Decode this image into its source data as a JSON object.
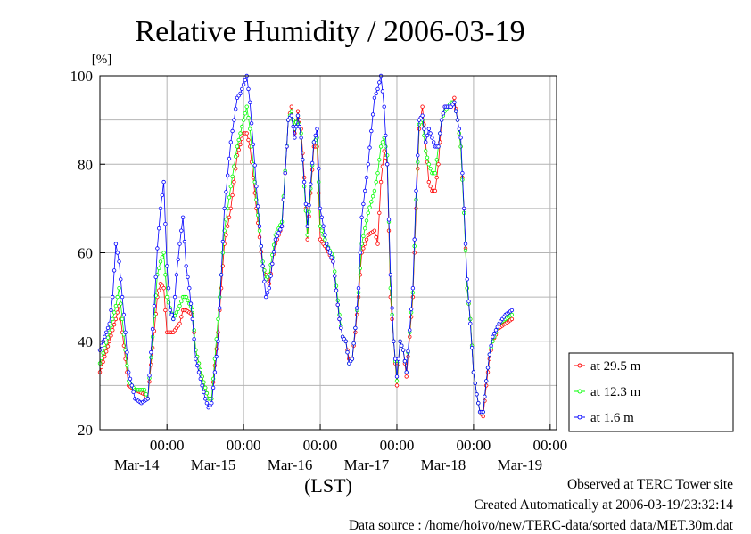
{
  "chart_data": {
    "type": "line",
    "title": "Relative Humidity / 2006-03-19",
    "ylabel": "[%]",
    "xlabel": "(LST)",
    "ylim": [
      20,
      100
    ],
    "yticks": [
      20,
      40,
      60,
      80,
      100
    ],
    "xlim": [
      0,
      143
    ],
    "xticks": [
      {
        "x": 21,
        "time": "00:00",
        "date": "Mar-14"
      },
      {
        "x": 45,
        "time": "00:00",
        "date": "Mar-15"
      },
      {
        "x": 69,
        "time": "00:00",
        "date": "Mar-16"
      },
      {
        "x": 93,
        "time": "00:00",
        "date": "Mar-17"
      },
      {
        "x": 117,
        "time": "00:00",
        "date": "Mar-18"
      },
      {
        "x": 141,
        "time": "00:00",
        "date": "Mar-19"
      }
    ],
    "grid": true,
    "legend_position": "right",
    "series": [
      {
        "name": "at 29.5 m",
        "color": "#ff0000",
        "knots": [
          [
            0,
            33
          ],
          [
            3,
            40
          ],
          [
            5,
            45
          ],
          [
            6,
            48
          ],
          [
            8,
            36
          ],
          [
            9,
            30
          ],
          [
            11,
            29
          ],
          [
            14,
            28
          ],
          [
            15,
            27
          ],
          [
            18,
            50
          ],
          [
            19,
            53
          ],
          [
            20,
            52
          ],
          [
            21,
            42
          ],
          [
            23,
            42
          ],
          [
            25,
            44
          ],
          [
            26,
            47
          ],
          [
            27,
            47
          ],
          [
            29,
            46
          ],
          [
            30,
            38
          ],
          [
            32,
            32
          ],
          [
            34,
            27
          ],
          [
            35,
            27
          ],
          [
            37,
            42
          ],
          [
            39,
            62
          ],
          [
            41,
            70
          ],
          [
            43,
            82
          ],
          [
            45,
            87
          ],
          [
            46,
            87
          ],
          [
            47,
            84
          ],
          [
            49,
            70
          ],
          [
            51,
            57
          ],
          [
            52,
            55
          ],
          [
            53,
            53
          ],
          [
            55,
            62
          ],
          [
            57,
            66
          ],
          [
            59,
            90
          ],
          [
            60,
            93
          ],
          [
            61,
            87
          ],
          [
            62,
            92
          ],
          [
            63,
            88
          ],
          [
            64,
            77
          ],
          [
            65,
            63
          ],
          [
            67,
            84
          ],
          [
            68,
            84
          ],
          [
            69,
            63
          ],
          [
            71,
            61
          ],
          [
            73,
            58
          ],
          [
            75,
            45
          ],
          [
            76,
            41
          ],
          [
            77,
            40
          ],
          [
            78,
            36
          ],
          [
            79,
            36
          ],
          [
            80,
            42
          ],
          [
            81,
            50
          ],
          [
            82,
            60
          ],
          [
            84,
            64
          ],
          [
            86,
            65
          ],
          [
            87,
            62
          ],
          [
            88,
            76
          ],
          [
            89,
            83
          ],
          [
            90,
            80
          ],
          [
            91,
            50
          ],
          [
            92,
            40
          ],
          [
            93,
            30
          ],
          [
            94,
            40
          ],
          [
            95,
            38
          ],
          [
            96,
            32
          ],
          [
            98,
            50
          ],
          [
            99,
            70
          ],
          [
            100,
            88
          ],
          [
            101,
            93
          ],
          [
            102,
            85
          ],
          [
            103,
            76
          ],
          [
            104,
            74
          ],
          [
            105,
            74
          ],
          [
            106,
            80
          ],
          [
            107,
            90
          ],
          [
            108,
            93
          ],
          [
            110,
            93
          ],
          [
            111,
            95
          ],
          [
            112,
            90
          ],
          [
            113,
            84
          ],
          [
            114,
            70
          ],
          [
            115,
            52
          ],
          [
            116,
            45
          ],
          [
            117,
            33
          ],
          [
            118,
            28
          ],
          [
            119,
            24
          ],
          [
            120,
            23
          ],
          [
            121,
            30
          ],
          [
            122,
            36
          ],
          [
            123,
            40
          ],
          [
            125,
            43
          ],
          [
            127,
            44
          ],
          [
            129,
            45
          ]
        ]
      },
      {
        "name": "at 12.3 m",
        "color": "#00ff00",
        "knots": [
          [
            0,
            35
          ],
          [
            3,
            42
          ],
          [
            5,
            48
          ],
          [
            6,
            52
          ],
          [
            8,
            38
          ],
          [
            9,
            31
          ],
          [
            11,
            29
          ],
          [
            14,
            29
          ],
          [
            15,
            27
          ],
          [
            18,
            55
          ],
          [
            19,
            58
          ],
          [
            20,
            60
          ],
          [
            21,
            50
          ],
          [
            23,
            45
          ],
          [
            25,
            48
          ],
          [
            26,
            50
          ],
          [
            27,
            50
          ],
          [
            29,
            47
          ],
          [
            30,
            38
          ],
          [
            32,
            32
          ],
          [
            34,
            27
          ],
          [
            35,
            27
          ],
          [
            37,
            45
          ],
          [
            39,
            65
          ],
          [
            41,
            75
          ],
          [
            43,
            84
          ],
          [
            45,
            90
          ],
          [
            46,
            93
          ],
          [
            47,
            88
          ],
          [
            49,
            72
          ],
          [
            51,
            58
          ],
          [
            52,
            54
          ],
          [
            53,
            55
          ],
          [
            55,
            64
          ],
          [
            57,
            67
          ],
          [
            59,
            90
          ],
          [
            60,
            92
          ],
          [
            61,
            88
          ],
          [
            62,
            91
          ],
          [
            63,
            87
          ],
          [
            64,
            75
          ],
          [
            65,
            64
          ],
          [
            67,
            85
          ],
          [
            68,
            86
          ],
          [
            69,
            66
          ],
          [
            71,
            62
          ],
          [
            73,
            59
          ],
          [
            75,
            46
          ],
          [
            76,
            41
          ],
          [
            77,
            40
          ],
          [
            78,
            35
          ],
          [
            79,
            36
          ],
          [
            80,
            43
          ],
          [
            81,
            51
          ],
          [
            82,
            62
          ],
          [
            84,
            69
          ],
          [
            86,
            74
          ],
          [
            87,
            78
          ],
          [
            88,
            84
          ],
          [
            89,
            86
          ],
          [
            90,
            82
          ],
          [
            91,
            52
          ],
          [
            92,
            40
          ],
          [
            93,
            31
          ],
          [
            94,
            40
          ],
          [
            95,
            38
          ],
          [
            96,
            33
          ],
          [
            98,
            51
          ],
          [
            99,
            72
          ],
          [
            100,
            89
          ],
          [
            101,
            90
          ],
          [
            102,
            83
          ],
          [
            103,
            80
          ],
          [
            104,
            78
          ],
          [
            105,
            78
          ],
          [
            106,
            84
          ],
          [
            107,
            90
          ],
          [
            108,
            92
          ],
          [
            110,
            94
          ],
          [
            111,
            94
          ],
          [
            112,
            90
          ],
          [
            113,
            84
          ],
          [
            114,
            69
          ],
          [
            115,
            52
          ],
          [
            116,
            45
          ],
          [
            117,
            33
          ],
          [
            118,
            28
          ],
          [
            119,
            24
          ],
          [
            120,
            24
          ],
          [
            121,
            31
          ],
          [
            122,
            37
          ],
          [
            123,
            40
          ],
          [
            125,
            44
          ],
          [
            127,
            45
          ],
          [
            129,
            46
          ]
        ]
      },
      {
        "name": "at 1.6 m",
        "color": "#0000ff",
        "knots": [
          [
            0,
            38
          ],
          [
            3,
            44
          ],
          [
            4,
            50
          ],
          [
            5,
            62
          ],
          [
            6,
            58
          ],
          [
            8,
            42
          ],
          [
            9,
            33
          ],
          [
            11,
            27
          ],
          [
            13,
            26
          ],
          [
            15,
            27
          ],
          [
            17,
            48
          ],
          [
            18,
            61
          ],
          [
            19,
            70
          ],
          [
            20,
            76
          ],
          [
            21,
            57
          ],
          [
            22,
            47
          ],
          [
            23,
            45
          ],
          [
            24,
            55
          ],
          [
            25,
            62
          ],
          [
            26,
            68
          ],
          [
            27,
            57
          ],
          [
            28,
            52
          ],
          [
            29,
            45
          ],
          [
            30,
            36
          ],
          [
            32,
            30
          ],
          [
            33,
            27
          ],
          [
            34,
            25
          ],
          [
            35,
            26
          ],
          [
            37,
            40
          ],
          [
            39,
            70
          ],
          [
            41,
            85
          ],
          [
            43,
            95
          ],
          [
            44,
            96
          ],
          [
            45,
            98
          ],
          [
            46,
            100
          ],
          [
            47,
            94
          ],
          [
            49,
            75
          ],
          [
            51,
            57
          ],
          [
            52,
            50
          ],
          [
            53,
            52
          ],
          [
            55,
            63
          ],
          [
            57,
            66
          ],
          [
            59,
            90
          ],
          [
            60,
            91
          ],
          [
            61,
            86
          ],
          [
            62,
            91
          ],
          [
            63,
            86
          ],
          [
            64,
            76
          ],
          [
            65,
            66
          ],
          [
            67,
            85
          ],
          [
            68,
            88
          ],
          [
            69,
            70
          ],
          [
            71,
            62
          ],
          [
            73,
            58
          ],
          [
            75,
            45
          ],
          [
            76,
            41
          ],
          [
            77,
            40
          ],
          [
            78,
            35
          ],
          [
            79,
            36
          ],
          [
            80,
            43
          ],
          [
            81,
            52
          ],
          [
            82,
            68
          ],
          [
            84,
            80
          ],
          [
            86,
            95
          ],
          [
            87,
            97
          ],
          [
            88,
            100
          ],
          [
            89,
            93
          ],
          [
            90,
            80
          ],
          [
            91,
            55
          ],
          [
            92,
            40
          ],
          [
            93,
            32
          ],
          [
            94,
            40
          ],
          [
            95,
            38
          ],
          [
            96,
            33
          ],
          [
            98,
            52
          ],
          [
            99,
            74
          ],
          [
            100,
            90
          ],
          [
            101,
            91
          ],
          [
            102,
            85
          ],
          [
            103,
            88
          ],
          [
            104,
            86
          ],
          [
            105,
            84
          ],
          [
            106,
            84
          ],
          [
            107,
            90
          ],
          [
            108,
            93
          ],
          [
            110,
            93
          ],
          [
            111,
            94
          ],
          [
            112,
            90
          ],
          [
            113,
            86
          ],
          [
            114,
            70
          ],
          [
            115,
            54
          ],
          [
            116,
            44
          ],
          [
            117,
            33
          ],
          [
            118,
            28
          ],
          [
            119,
            24
          ],
          [
            120,
            24
          ],
          [
            121,
            31
          ],
          [
            122,
            37
          ],
          [
            123,
            41
          ],
          [
            125,
            44
          ],
          [
            127,
            46
          ],
          [
            129,
            47
          ]
        ]
      }
    ]
  },
  "footer": {
    "observed": "Observed at TERC Tower site",
    "created": "Created Automatically at 2006-03-19/23:32:14",
    "source": "Data source : /home/hoivo/new/TERC-data/sorted  data/MET.30m.dat"
  }
}
